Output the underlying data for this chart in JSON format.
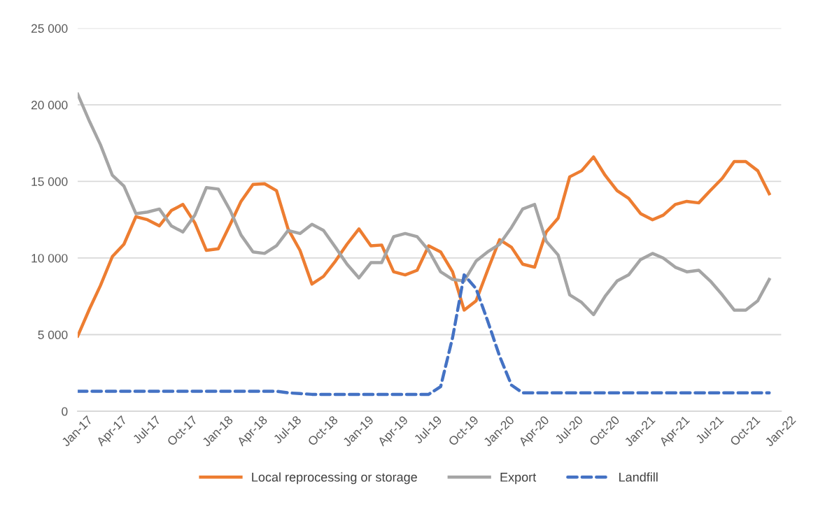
{
  "chart_data": {
    "type": "line",
    "x": [
      "2017-01",
      "2017-02",
      "2017-03",
      "2017-04",
      "2017-05",
      "2017-06",
      "2017-07",
      "2017-08",
      "2017-09",
      "2017-10",
      "2017-11",
      "2017-12",
      "2018-01",
      "2018-02",
      "2018-03",
      "2018-04",
      "2018-05",
      "2018-06",
      "2018-07",
      "2018-08",
      "2018-09",
      "2018-10",
      "2018-11",
      "2018-12",
      "2019-01",
      "2019-02",
      "2019-03",
      "2019-04",
      "2019-05",
      "2019-06",
      "2019-07",
      "2019-08",
      "2019-09",
      "2019-10",
      "2019-11",
      "2019-12",
      "2020-01",
      "2020-02",
      "2020-03",
      "2020-04",
      "2020-05",
      "2020-06",
      "2020-07",
      "2020-08",
      "2020-09",
      "2020-10",
      "2020-11",
      "2020-12",
      "2021-01",
      "2021-02",
      "2021-03",
      "2021-04",
      "2021-05",
      "2021-06",
      "2021-07",
      "2021-08",
      "2021-09",
      "2021-10",
      "2021-11",
      "2021-12"
    ],
    "series": [
      {
        "name": "Local reprocessing or storage",
        "color": "#ed7d31",
        "line_style": "solid",
        "values": [
          4900,
          6700,
          8200,
          10100,
          10900,
          12700,
          12500,
          12100,
          13100,
          13500,
          12300,
          10500,
          10600,
          12200,
          13700,
          14800,
          14850,
          14400,
          11900,
          10500,
          8300,
          8800,
          9800,
          10900,
          11900,
          10800,
          10850,
          9100,
          8900,
          9200,
          10800,
          10400,
          9100,
          6600,
          7200,
          9200,
          11200,
          10700,
          9600,
          9400,
          11700,
          12600,
          15300,
          15700,
          16600,
          15400,
          14400,
          13900,
          12900,
          12500,
          12800,
          13500,
          13700,
          13600,
          14400,
          15200,
          16300,
          16300,
          15700,
          14200
        ]
      },
      {
        "name": "Export",
        "color": "#a5a5a5",
        "line_style": "solid",
        "values": [
          20700,
          18900,
          17400,
          15400,
          14700,
          12900,
          13000,
          13200,
          12100,
          11700,
          12800,
          14600,
          14500,
          13100,
          11500,
          10400,
          10300,
          10800,
          11800,
          11600,
          12200,
          11800,
          10700,
          9600,
          8700,
          9700,
          9700,
          11400,
          11600,
          11400,
          10500,
          9100,
          8600,
          8500,
          9800,
          10400,
          10900,
          12000,
          13200,
          13500,
          11100,
          10200,
          7600,
          7100,
          6300,
          7500,
          8500,
          8900,
          9900,
          10300,
          10000,
          9400,
          9100,
          9200,
          8500,
          7600,
          6600,
          6600,
          7200,
          8600
        ]
      },
      {
        "name": "Landfill",
        "color": "#4472c4",
        "line_style": "dashed",
        "values": [
          1300,
          1300,
          1300,
          1300,
          1300,
          1300,
          1300,
          1300,
          1300,
          1300,
          1300,
          1300,
          1300,
          1300,
          1300,
          1300,
          1300,
          1300,
          1200,
          1150,
          1100,
          1100,
          1100,
          1100,
          1100,
          1100,
          1100,
          1100,
          1100,
          1100,
          1100,
          1600,
          4800,
          8900,
          8000,
          5900,
          3600,
          1700,
          1200,
          1200,
          1200,
          1200,
          1200,
          1200,
          1200,
          1200,
          1200,
          1200,
          1200,
          1200,
          1200,
          1200,
          1200,
          1200,
          1200,
          1200,
          1200,
          1200,
          1200,
          1200
        ]
      }
    ],
    "ylim": [
      0,
      25000
    ],
    "yticks": [
      0,
      {
        "value": 5000,
        "label": "5 000"
      },
      {
        "value": 10000,
        "label": "10 000"
      },
      {
        "value": 15000,
        "label": "15 000"
      },
      {
        "value": 20000,
        "label": "20 000"
      },
      {
        "value": 25000,
        "label": "25 000"
      }
    ],
    "xlim": [
      "2017-01",
      "2022-01"
    ],
    "xticks": [
      {
        "value": "2017-01",
        "label": "Jan-17"
      },
      {
        "value": "2017-04",
        "label": "Apr-17"
      },
      {
        "value": "2017-07",
        "label": "Jul-17"
      },
      {
        "value": "2017-10",
        "label": "Oct-17"
      },
      {
        "value": "2018-01",
        "label": "Jan-18"
      },
      {
        "value": "2018-04",
        "label": "Apr-18"
      },
      {
        "value": "2018-07",
        "label": "Jul-18"
      },
      {
        "value": "2018-10",
        "label": "Oct-18"
      },
      {
        "value": "2019-01",
        "label": "Jan-19"
      },
      {
        "value": "2019-04",
        "label": "Apr-19"
      },
      {
        "value": "2019-07",
        "label": "Jul-19"
      },
      {
        "value": "2019-10",
        "label": "Oct-19"
      },
      {
        "value": "2020-01",
        "label": "Jan-20"
      },
      {
        "value": "2020-04",
        "label": "Apr-20"
      },
      {
        "value": "2020-07",
        "label": "Jul-20"
      },
      {
        "value": "2020-10",
        "label": "Oct-20"
      },
      {
        "value": "2021-01",
        "label": "Jan-21"
      },
      {
        "value": "2021-04",
        "label": "Apr-21"
      },
      {
        "value": "2021-07",
        "label": "Jul-21"
      },
      {
        "value": "2021-10",
        "label": "Oct-21"
      },
      {
        "value": "2022-01",
        "label": "Jan-22"
      }
    ],
    "grid": "y",
    "legend": "bottom",
    "marker": "none"
  }
}
